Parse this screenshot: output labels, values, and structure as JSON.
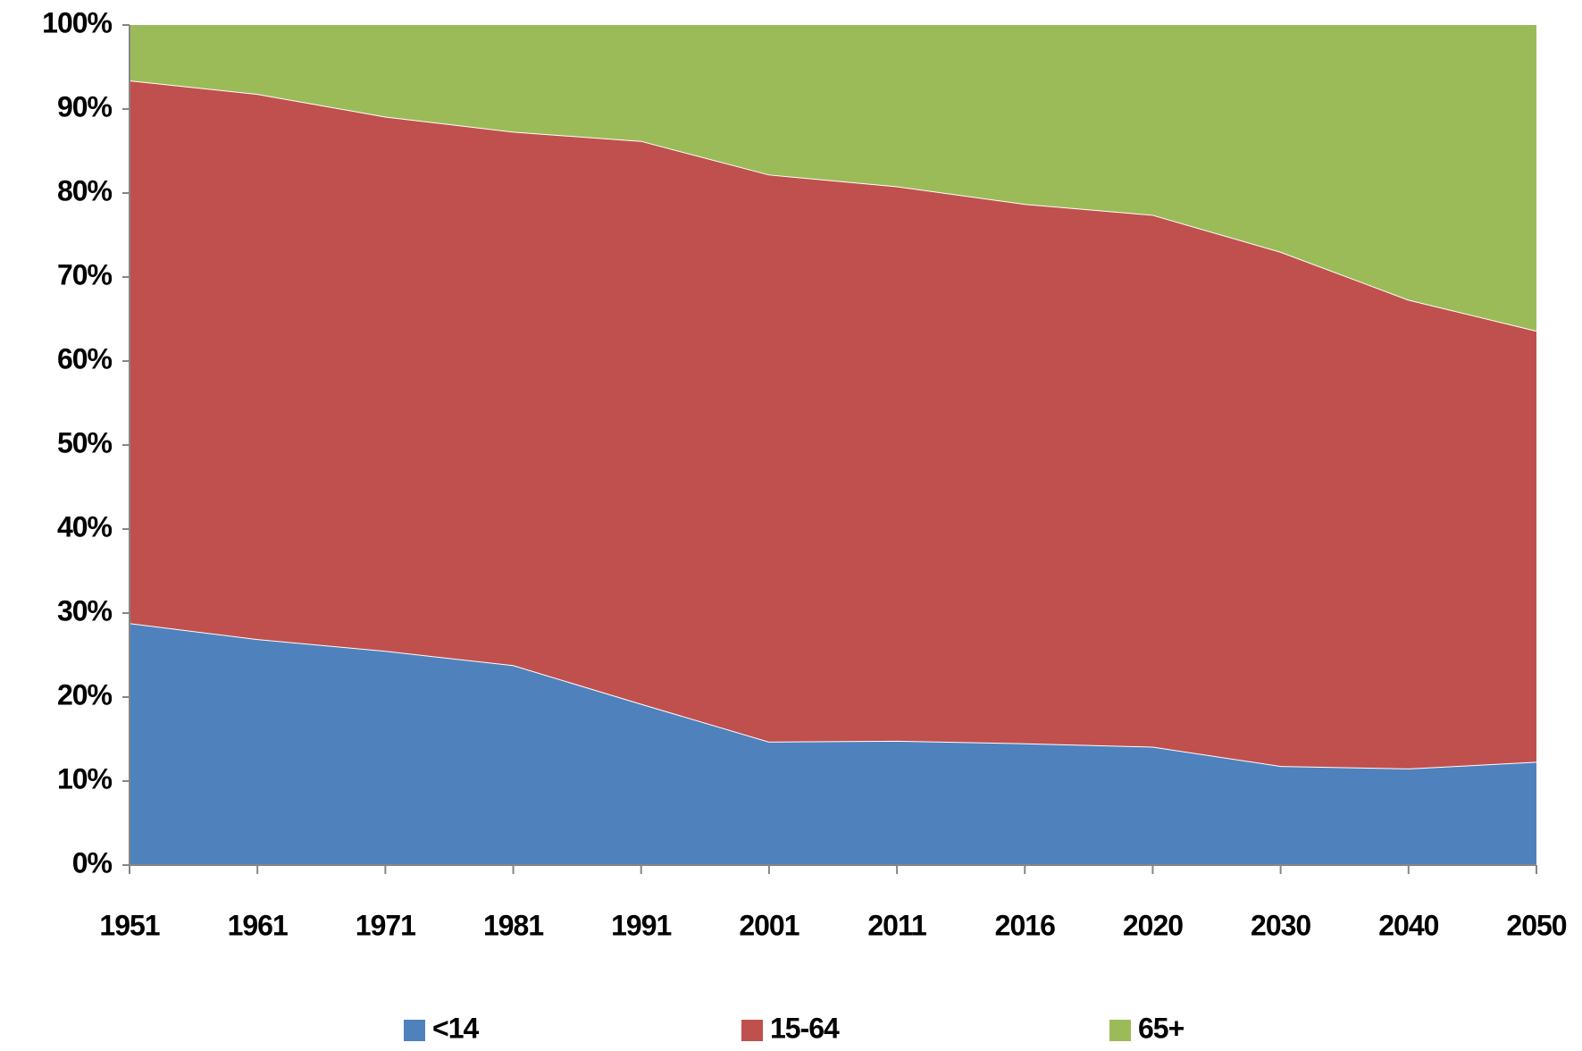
{
  "chart_data": {
    "type": "stacked_area",
    "categories": [
      "1951",
      "1961",
      "1971",
      "1981",
      "1991",
      "2001",
      "2011",
      "2016",
      "2020",
      "2030",
      "2040",
      "2050"
    ],
    "series": [
      {
        "name": "<14",
        "color": "#4f81bd",
        "values": [
          28.8,
          26.9,
          25.5,
          23.8,
          19.2,
          14.7,
          14.8,
          14.5,
          14.1,
          11.8,
          11.5,
          12.3
        ]
      },
      {
        "name": "15-64",
        "color": "#c0504d",
        "values": [
          64.6,
          64.9,
          63.6,
          63.5,
          67.0,
          67.5,
          66.0,
          64.2,
          63.3,
          61.2,
          55.8,
          51.3
        ]
      },
      {
        "name": "65+",
        "color": "#9bbb59",
        "values": [
          6.6,
          8.2,
          10.9,
          12.7,
          13.8,
          17.8,
          19.2,
          21.3,
          22.6,
          27.0,
          32.7,
          36.4
        ]
      }
    ],
    "ylim": [
      0,
      100
    ],
    "yticks": [
      {
        "value": 0,
        "label": "0%"
      },
      {
        "value": 10,
        "label": "10%"
      },
      {
        "value": 20,
        "label": "20%"
      },
      {
        "value": 30,
        "label": "30%"
      },
      {
        "value": 40,
        "label": "40%"
      },
      {
        "value": 50,
        "label": "50%"
      },
      {
        "value": 60,
        "label": "60%"
      },
      {
        "value": 70,
        "label": "70%"
      },
      {
        "value": 80,
        "label": "80%"
      },
      {
        "value": 90,
        "label": "90%"
      },
      {
        "value": 100,
        "label": "100%"
      }
    ],
    "legend": "bottom"
  }
}
